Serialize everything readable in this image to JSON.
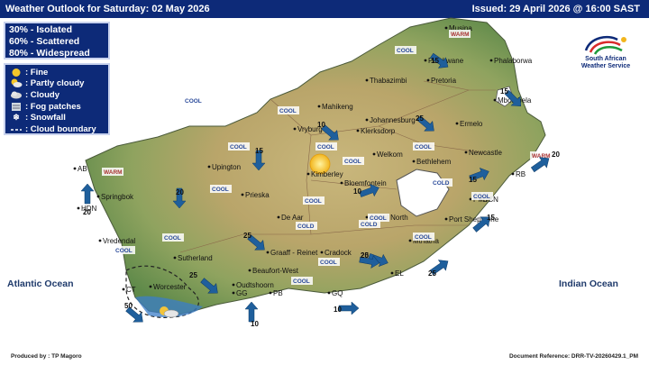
{
  "header": {
    "title": "Weather Outlook for Saturday: 02 May 2026",
    "issued": "Issued: 29 April  2026 @ 16:00 SAST"
  },
  "coverage": [
    "30% - Isolated",
    "60% - Scattered",
    "80% - Widespread"
  ],
  "legend": [
    {
      "icon": "sun-icon",
      "label": ": Fine"
    },
    {
      "icon": "partly-cloudy-icon",
      "label": ": Partly cloudy"
    },
    {
      "icon": "cloud-icon",
      "label": ": Cloudy"
    },
    {
      "icon": "fog-icon",
      "label": ": Fog patches"
    },
    {
      "icon": "snowflake-icon",
      "label": ": Snowfall"
    },
    {
      "icon": "dashed-line-icon",
      "label": ": Cloud boundary"
    }
  ],
  "logo": {
    "line1": "South African",
    "line2": "Weather Service"
  },
  "oceans": {
    "atlantic": "Atlantic Ocean",
    "indian": "Indian Ocean"
  },
  "cities": [
    "Musina",
    "Polokwane",
    "Phalaborwa",
    "Thabazimbi",
    "Pretoria",
    "Mbombela",
    "Mahikeng",
    "Johannesburg",
    "Vryburg",
    "Klerksdorp",
    "Ermelo",
    "Welkom",
    "Bethlehem",
    "Newcastle",
    "Upington",
    "Kimberley",
    "Bloemfontein",
    "RB",
    "AB",
    "Springbok",
    "HDN",
    "Prieska",
    "PMT",
    "DBN",
    "De Aar",
    "Aliwal North",
    "Port Shepstone",
    "Vredendal",
    "Sutherland",
    "Mthatha",
    "Graaff - Reinet",
    "Cradock",
    "Beaufort-West",
    "EL",
    "Worcester",
    "Oudtshoorn",
    "GG",
    "PB",
    "GQ",
    "CT"
  ],
  "temps": {
    "cool": "COOL",
    "warm": "WARM",
    "cold": "COLD"
  },
  "winds": [
    "15",
    "15",
    "10",
    "25",
    "10",
    "20",
    "15",
    "15",
    "20",
    "20",
    "15",
    "25",
    "25",
    "25",
    "20",
    "25",
    "50",
    "10",
    "10"
  ],
  "footer": {
    "produced": "Produced by : TP Magoro",
    "reference": "Document Reference: DRR-TV-20260429.1_PM"
  }
}
